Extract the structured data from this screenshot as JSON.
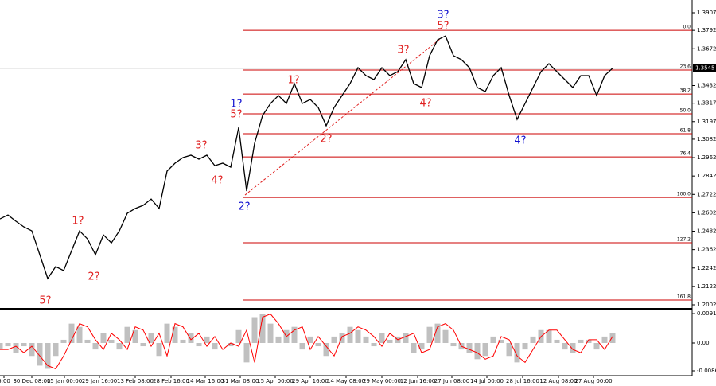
{
  "chart_data": {
    "type": "line",
    "x": [
      0,
      1,
      2,
      3,
      4,
      5,
      6,
      7,
      8,
      9,
      10,
      11,
      12,
      13,
      14,
      15,
      16,
      17,
      18,
      19,
      20,
      21,
      22,
      23,
      24,
      25,
      26,
      27,
      28,
      29,
      30,
      31,
      32,
      33,
      34,
      35,
      36,
      37,
      38,
      39,
      40,
      41,
      42,
      43,
      44,
      45,
      46,
      47,
      48,
      49,
      50,
      51,
      52,
      53,
      54,
      55,
      56,
      57,
      58,
      59,
      60,
      61,
      62,
      63,
      64,
      65,
      66,
      67,
      68,
      69,
      70,
      71,
      72,
      73,
      74,
      75,
      76,
      77
    ],
    "series": [
      {
        "color": "#000000",
        "values": [
          1.2562,
          1.2588,
          1.2547,
          1.251,
          1.2484,
          1.2329,
          1.2173,
          1.2251,
          1.2225,
          1.2355,
          1.2484,
          1.2432,
          1.2329,
          1.2458,
          1.2406,
          1.2484,
          1.2599,
          1.263,
          1.2651,
          1.2692,
          1.263,
          1.2874,
          1.2926,
          1.2962,
          1.2978,
          1.2952,
          1.2978,
          1.291,
          1.2926,
          1.29,
          1.3159,
          1.2744,
          1.3055,
          1.3237,
          1.3315,
          1.3367,
          1.3315,
          1.3445,
          1.3315,
          1.3341,
          1.3289,
          1.317,
          1.3289,
          1.3367,
          1.3445,
          1.3549,
          1.3497,
          1.3471,
          1.3549,
          1.3497,
          1.3523,
          1.3601,
          1.3445,
          1.3419,
          1.3627,
          1.373,
          1.3756,
          1.3627,
          1.3601,
          1.3549,
          1.3419,
          1.3393,
          1.3497,
          1.3549,
          1.3367,
          1.3211,
          1.3315,
          1.3419,
          1.3523,
          1.3575,
          1.3523,
          1.3471,
          1.3419,
          1.3497,
          1.3497,
          1.3367,
          1.3497,
          1.3545
        ]
      }
    ],
    "xlim": [
      0,
      87
    ],
    "ylim": [
      1.1976,
      1.399
    ],
    "xticks": [
      {
        "value": 0.5,
        "label": "6:00"
      },
      {
        "value": 4.0,
        "label": "30 Dec 08:00"
      },
      {
        "value": 8.1,
        "label": "15 Jan 00:00"
      },
      {
        "value": 12.5,
        "label": "29 Jan 16:00"
      },
      {
        "value": 17.0,
        "label": "13 Feb 08:00"
      },
      {
        "value": 21.5,
        "label": "28 Feb 16:00"
      },
      {
        "value": 25.8,
        "label": "14 Mar 16:00"
      },
      {
        "value": 30.2,
        "label": "31 Mar 08:00"
      },
      {
        "value": 34.6,
        "label": "15 Apr 00:00"
      },
      {
        "value": 39.0,
        "label": "29 Apr 16:00"
      },
      {
        "value": 43.5,
        "label": "14 May 08:00"
      },
      {
        "value": 48.0,
        "label": "29 May 00:00"
      },
      {
        "value": 52.5,
        "label": "12 Jun 16:00"
      },
      {
        "value": 56.8,
        "label": "27 Jun 08:00"
      },
      {
        "value": 61.2,
        "label": "14 Jul 00:00"
      },
      {
        "value": 65.7,
        "label": "28 Jul 16:00"
      },
      {
        "value": 70.2,
        "label": "12 Aug 08:00"
      },
      {
        "value": 74.6,
        "label": "27 Aug 00:00"
      }
    ],
    "yticks": [
      1.3907,
      1.3792,
      1.3672,
      1.3432,
      1.3317,
      1.3197,
      1.3082,
      1.2962,
      1.2842,
      1.2722,
      1.2602,
      1.2482,
      1.2362,
      1.2242,
      1.2122,
      1.2002
    ],
    "current_price": 1.3545,
    "fib_levels": [
      {
        "label": "0.0",
        "value": 1.3792
      },
      {
        "label": "23.6",
        "value": 1.3533
      },
      {
        "label": "38.2",
        "value": 1.3377
      },
      {
        "label": "50.0",
        "value": 1.3248
      },
      {
        "label": "61.8",
        "value": 1.3118
      },
      {
        "label": "76.4",
        "value": 1.2967
      },
      {
        "label": "100.0",
        "value": 1.2702
      },
      {
        "label": "127.2",
        "value": 1.2407
      },
      {
        "label": "161.8",
        "value": 1.2033
      }
    ],
    "fib_color": "#cc0000",
    "trendline": {
      "color": "#e02020",
      "x": [
        30.8,
        55.8
      ],
      "y": [
        1.2718,
        1.3756
      ]
    },
    "annotations": [
      {
        "text": "5?",
        "color": "#e02020",
        "x": 5.7,
        "y": 1.2027
      },
      {
        "text": "1?",
        "color": "#e02020",
        "x": 9.8,
        "y": 1.2547
      },
      {
        "text": "2?",
        "color": "#e02020",
        "x": 11.8,
        "y": 1.2183
      },
      {
        "text": "3?",
        "color": "#e02020",
        "x": 25.3,
        "y": 1.304
      },
      {
        "text": "4?",
        "color": "#e02020",
        "x": 27.3,
        "y": 1.2811
      },
      {
        "text": "1?",
        "color": "#1010d0",
        "x": 29.7,
        "y": 1.331
      },
      {
        "text": "5?",
        "color": "#e02020",
        "x": 29.7,
        "y": 1.3243
      },
      {
        "text": "2?",
        "color": "#1010d0",
        "x": 30.7,
        "y": 1.264
      },
      {
        "text": "1?",
        "color": "#e02020",
        "x": 36.9,
        "y": 1.3466
      },
      {
        "text": "2?",
        "color": "#e02020",
        "x": 41.0,
        "y": 1.3081
      },
      {
        "text": "3?",
        "color": "#e02020",
        "x": 50.7,
        "y": 1.3663
      },
      {
        "text": "4?",
        "color": "#e02020",
        "x": 53.5,
        "y": 1.3315
      },
      {
        "text": "3?",
        "color": "#1010d0",
        "x": 55.7,
        "y": 1.3891
      },
      {
        "text": "5?",
        "color": "#e02020",
        "x": 55.7,
        "y": 1.3819
      },
      {
        "text": "4?",
        "color": "#1010d0",
        "x": 65.4,
        "y": 1.3071
      }
    ],
    "oscillator": {
      "ylim": [
        -0.0101,
        0.0101
      ],
      "yticks": [
        0.0091,
        {
          "value": 0,
          "label": "0.00"
        },
        -0.00862
      ],
      "series": [
        {
          "color": "#c0c0c0",
          "values": [
            -0.002,
            -0.001,
            -0.003,
            -0.001,
            -0.004,
            -0.007,
            -0.008,
            -0.004,
            0.001,
            0.006,
            0.005,
            0.001,
            -0.002,
            0.003,
            0.001,
            -0.002,
            0.005,
            0.004,
            -0.001,
            0.003,
            -0.004,
            0.006,
            0.005,
            0.001,
            0.003,
            -0.001,
            0.002,
            -0.002,
            0,
            -0.001,
            0.004,
            -0.006,
            0.008,
            0.009,
            0.006,
            0.002,
            0.004,
            0.005,
            -0.002,
            0.002,
            -0.001,
            -0.004,
            0.002,
            0.003,
            0.005,
            0.004,
            0.002,
            -0.001,
            0.003,
            0.001,
            0.002,
            0.003,
            -0.003,
            -0.002,
            0.005,
            0.006,
            0.004,
            -0.001,
            -0.002,
            -0.003,
            -0.005,
            -0.004,
            0.002,
            0.001,
            -0.004,
            -0.006,
            -0.002,
            0.002,
            0.004,
            0.004,
            0.001,
            -0.002,
            -0.003,
            0.001,
            0.001,
            -0.002,
            0.002,
            0.003
          ]
        },
        {
          "color": "#ff0000",
          "values": [
            -0.002,
            -0.002,
            -0.001,
            -0.003,
            -0.001,
            -0.004,
            -0.007,
            -0.008,
            -0.004,
            0.001,
            0.006,
            0.005,
            0.001,
            -0.002,
            0.003,
            0.001,
            -0.002,
            0.005,
            0.004,
            -0.001,
            0.003,
            -0.004,
            0.006,
            0.005,
            0.001,
            0.003,
            -0.001,
            0.002,
            -0.002,
            0,
            -0.001,
            0.004,
            -0.006,
            0.008,
            0.009,
            0.006,
            0.002,
            0.004,
            0.005,
            -0.002,
            0.002,
            -0.001,
            -0.004,
            0.002,
            0.003,
            0.005,
            0.004,
            0.002,
            -0.001,
            0.003,
            0.001,
            0.002,
            0.003,
            -0.003,
            -0.002,
            0.005,
            0.006,
            0.004,
            -0.001,
            -0.002,
            -0.003,
            -0.005,
            -0.004,
            0.002,
            0.001,
            -0.004,
            -0.006,
            -0.002,
            0.002,
            0.004,
            0.004,
            0.001,
            -0.002,
            -0.003,
            0.001,
            0.001,
            -0.002,
            0.002
          ]
        }
      ]
    }
  }
}
